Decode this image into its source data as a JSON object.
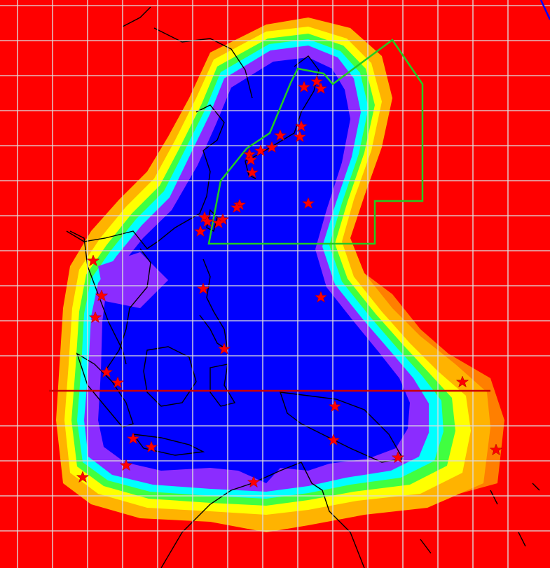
{
  "colors": {
    "background": "#ff0000",
    "orange_outer": "#ff7f00",
    "orange": "#ffb300",
    "yellow": "#ffff00",
    "green": "#40ff40",
    "cyan": "#00ffff",
    "light_blue": "#4aa8ff",
    "purple": "#8b2cff",
    "blue": "#0000ff",
    "grid": "#dddddd",
    "coastline": "#000000",
    "region_outline": "#22cc22",
    "equator": "#cc0000",
    "station_marker": "#ff0000"
  },
  "grid": {
    "longitude_lines": 15,
    "latitude_lines": 15
  },
  "stations": {
    "count": 38,
    "marker_icon": "red-star-icon"
  },
  "highlighted_region": {
    "shape": "polygon",
    "color_name": "green"
  },
  "equator_line": {
    "visible": true
  },
  "corner_mark": {
    "visible": true,
    "color": "#0000ff"
  }
}
